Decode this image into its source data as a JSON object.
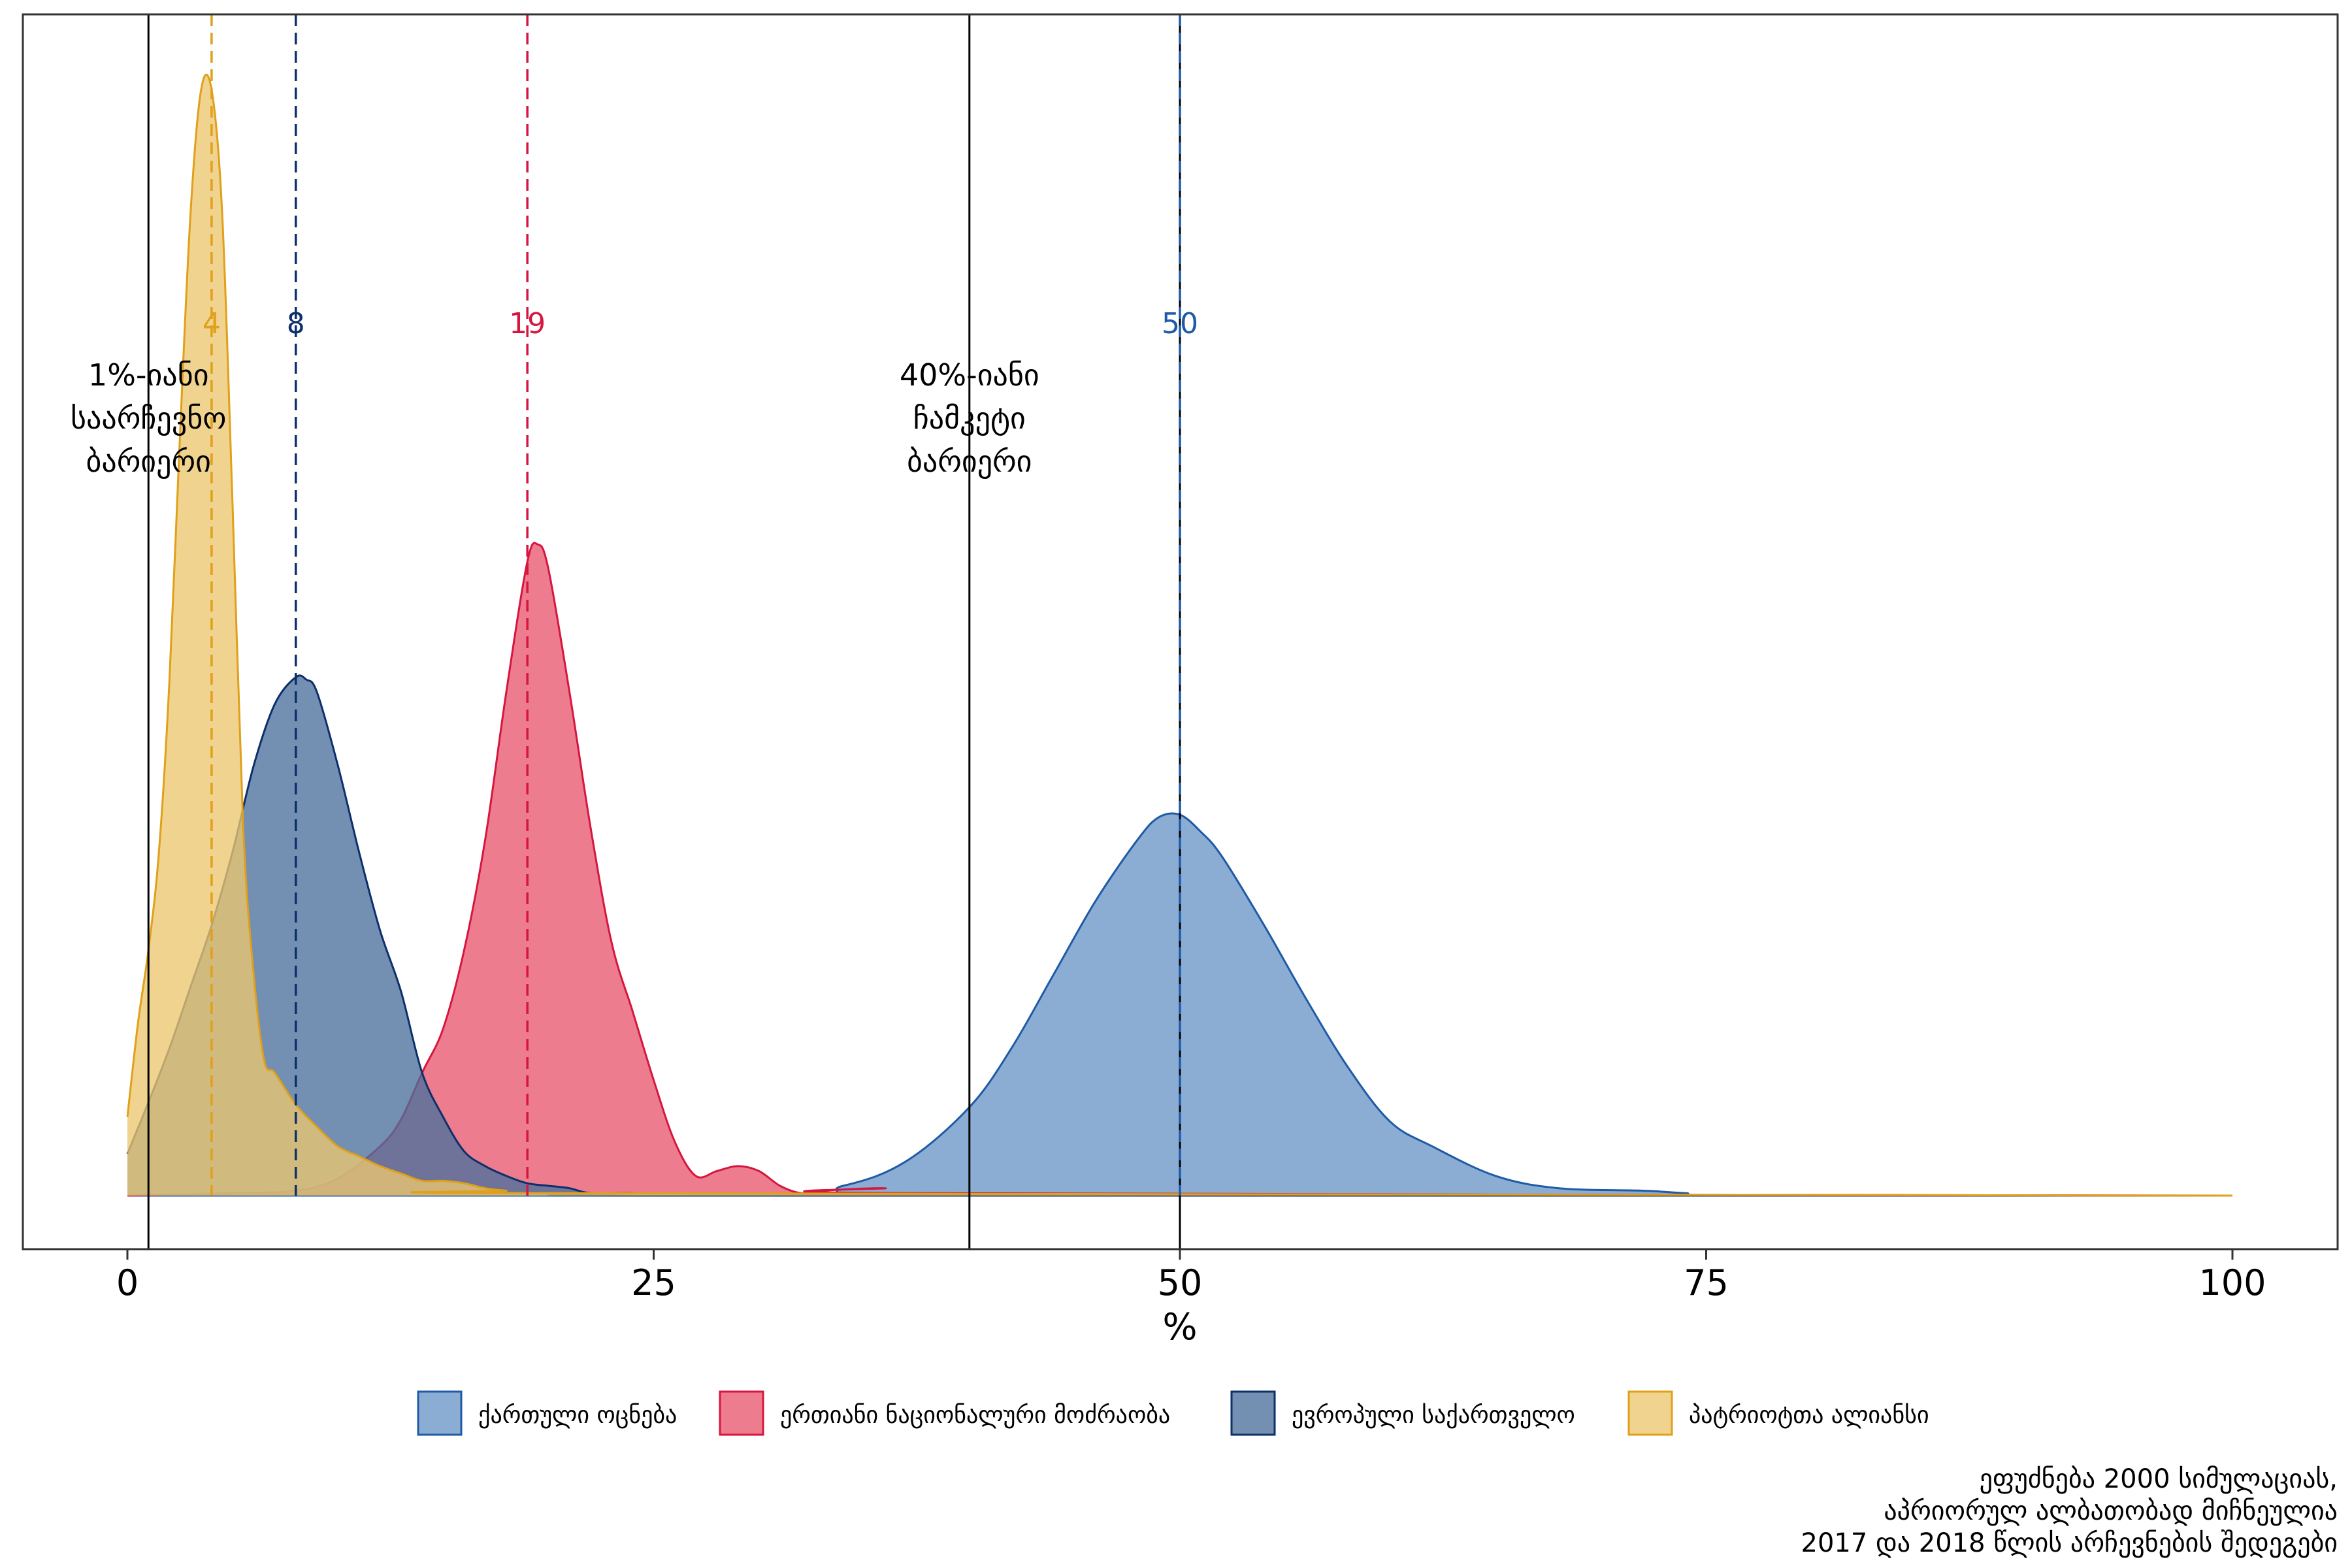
{
  "chart_data": {
    "type": "area",
    "xlabel": "%",
    "xlim": [
      0,
      100
    ],
    "x_ticks": [
      0,
      25,
      50,
      75,
      100
    ],
    "x_tick_labels": [
      "0",
      "25",
      "50",
      "75",
      "100"
    ],
    "grid": false,
    "legend_position": "bottom",
    "series": [
      {
        "name": "ქართული ოცნება",
        "color": "#1f5aa6",
        "fill": "#6a96c8",
        "median": 50,
        "median_label": "50",
        "x": [
          0,
          30,
          34,
          37,
          40,
          42,
          44,
          46,
          48,
          49,
          50,
          51,
          52,
          54,
          56,
          58,
          60,
          62,
          65,
          68,
          72,
          74,
          76.5,
          100
        ],
        "y": [
          0,
          0,
          0.004,
          0.014,
          0.036,
          0.06,
          0.09,
          0.12,
          0.145,
          0.154,
          0.155,
          0.148,
          0.138,
          0.11,
          0.08,
          0.052,
          0.03,
          0.02,
          0.008,
          0.003,
          0.002,
          0.001,
          0,
          0
        ]
      },
      {
        "name": "ერთიანი ნაციონალური მოძრაობა",
        "color": "#d6163f",
        "fill": "#e85770",
        "median": 19,
        "median_label": "19",
        "x": [
          0,
          5,
          8,
          10,
          12,
          13,
          14,
          15,
          16,
          17,
          18,
          19,
          19.5,
          20,
          21,
          22,
          23,
          24,
          25,
          26,
          27,
          28,
          29,
          30,
          31,
          32,
          33,
          36,
          37,
          100
        ],
        "y": [
          0,
          0.001,
          0.002,
          0.007,
          0.02,
          0.031,
          0.05,
          0.068,
          0.1,
          0.145,
          0.205,
          0.258,
          0.265,
          0.255,
          0.205,
          0.15,
          0.103,
          0.075,
          0.047,
          0.022,
          0.008,
          0.01,
          0.012,
          0.01,
          0.004,
          0.001,
          0.002,
          0.003,
          0.001,
          0
        ]
      },
      {
        "name": "ევროპული საქართველო",
        "color": "#0d2f6a",
        "fill": "#4c6f9c",
        "median": 8,
        "median_label": "8",
        "x": [
          0,
          1,
          2,
          3,
          4,
          5,
          6,
          7,
          8,
          8.5,
          9,
          10,
          11,
          12,
          13,
          14,
          15,
          16,
          17,
          18,
          19,
          20,
          21,
          22,
          24,
          26,
          100
        ],
        "y": [
          0.017,
          0.038,
          0.06,
          0.085,
          0.11,
          0.14,
          0.175,
          0.2,
          0.211,
          0.21,
          0.205,
          0.175,
          0.14,
          0.108,
          0.083,
          0.05,
          0.032,
          0.018,
          0.012,
          0.008,
          0.005,
          0.004,
          0.003,
          0.001,
          0.001,
          0,
          0
        ]
      },
      {
        "name": "პატრიოტთა ალიანსი",
        "color": "#e0a01a",
        "fill": "#ecc770",
        "median": 4,
        "median_label": "4",
        "x": [
          0,
          0.5,
          1,
          1.5,
          2,
          2.5,
          3,
          3.5,
          4,
          4.5,
          5,
          5.5,
          6,
          6.5,
          7,
          8,
          9,
          10,
          11,
          12,
          13,
          14,
          15,
          16,
          17,
          18,
          20,
          100
        ],
        "y": [
          0.032,
          0.07,
          0.1,
          0.14,
          0.21,
          0.31,
          0.4,
          0.45,
          0.45,
          0.4,
          0.28,
          0.15,
          0.09,
          0.055,
          0.05,
          0.037,
          0.028,
          0.02,
          0.016,
          0.012,
          0.009,
          0.006,
          0.006,
          0.005,
          0.003,
          0.002,
          0.001,
          0
        ]
      }
    ],
    "thresholds": [
      {
        "x": 1,
        "label_lines": [
          "1%-იანი",
          "საარჩევნო",
          "ბარიერი"
        ]
      },
      {
        "x": 40,
        "label_lines": [
          "40%-იანი",
          "ჩამკეტი",
          "ბარიერი"
        ]
      },
      {
        "x": 50
      }
    ],
    "caption_lines": [
      "ეფუძნება 2000 სიმულაციას,",
      "აპრიორულ ალბათობად მიჩნეულია",
      "2017 და 2018 წლის არჩევნების შედეგები"
    ]
  }
}
